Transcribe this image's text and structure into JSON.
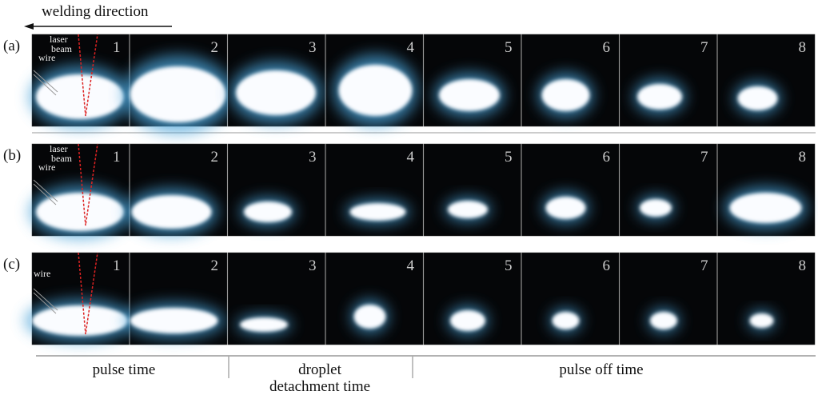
{
  "header": {
    "title": "welding direction"
  },
  "rows": [
    {
      "label": "(a)",
      "annotations": [
        "laser",
        "beam",
        "wire"
      ]
    },
    {
      "label": "(b)",
      "annotations": [
        "laser",
        "beam",
        "wire"
      ]
    },
    {
      "label": "(c)",
      "annotations": [
        "wire"
      ]
    }
  ],
  "frame_labels": [
    "1",
    "2",
    "3",
    "4",
    "5",
    "6",
    "7",
    "8"
  ],
  "phases": [
    {
      "lines": [
        "pulse time"
      ]
    },
    {
      "lines": [
        "droplet",
        "detachment time"
      ]
    },
    {
      "lines": [
        "pulse off time"
      ]
    }
  ]
}
